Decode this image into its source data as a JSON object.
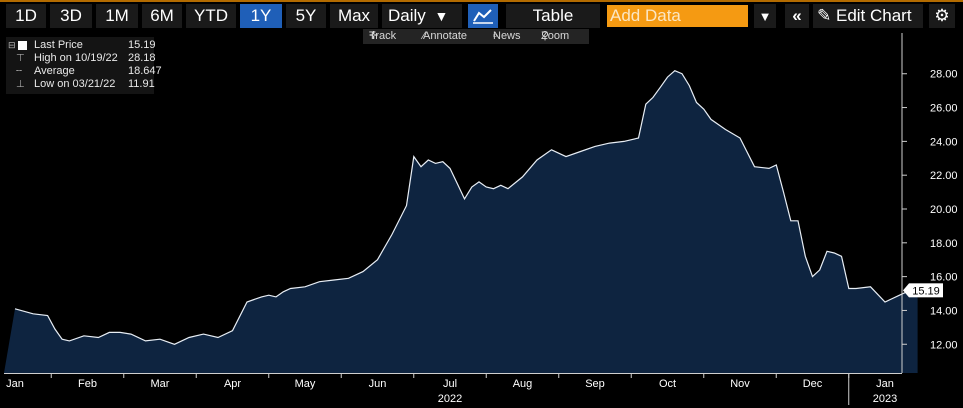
{
  "toolbar": {
    "ranges": [
      "1D",
      "3D",
      "1M",
      "6M",
      "YTD",
      "1Y",
      "5Y",
      "Max"
    ],
    "active_range": "1Y",
    "frequency": "Daily",
    "table_label": "Table",
    "add_data_placeholder": "Add Data",
    "edit_chart_label": "Edit Chart"
  },
  "subtoolbar": {
    "track": "Track",
    "annotate": "Annotate",
    "news": "News",
    "zoom": "Zoom"
  },
  "legend": {
    "last_price_label": "Last Price",
    "last_price_value": "15.19",
    "high_label": "High on 10/19/22",
    "high_value": "28.18",
    "average_label": "Average",
    "average_value": "18.647",
    "low_label": "Low on 03/21/22",
    "low_value": "11.91"
  },
  "colors": {
    "fill": "#0e2440",
    "line": "#e8eef5",
    "background": "#000000",
    "orange": "#f59a12",
    "active_blue": "#1f5fb8"
  },
  "chart_data": {
    "type": "area",
    "x_unit": "month index (0 = Jan 2022, 12 = Jan 2023)",
    "x": [
      0.0,
      0.25,
      0.45,
      0.55,
      0.65,
      0.75,
      0.95,
      1.15,
      1.3,
      1.45,
      1.6,
      1.8,
      2.0,
      2.2,
      2.4,
      2.6,
      2.8,
      3.0,
      3.2,
      3.4,
      3.5,
      3.6,
      3.7,
      3.8,
      4.0,
      4.2,
      4.4,
      4.6,
      4.8,
      5.0,
      5.2,
      5.4,
      5.5,
      5.6,
      5.7,
      5.8,
      5.9,
      6.0,
      6.1,
      6.2,
      6.3,
      6.4,
      6.5,
      6.6,
      6.7,
      6.8,
      7.0,
      7.2,
      7.4,
      7.6,
      7.8,
      8.0,
      8.2,
      8.4,
      8.6,
      8.7,
      8.8,
      8.9,
      9.0,
      9.1,
      9.2,
      9.3,
      9.4,
      9.5,
      9.6,
      9.8,
      10.0,
      10.2,
      10.4,
      10.5,
      10.6,
      10.7,
      10.8,
      10.9,
      11.0,
      11.1,
      11.2,
      11.3,
      11.4,
      11.5,
      11.6,
      11.8,
      12.0,
      12.2,
      12.35,
      12.45
    ],
    "y": [
      14.1,
      13.8,
      13.7,
      12.9,
      12.3,
      12.2,
      12.5,
      12.4,
      12.7,
      12.7,
      12.6,
      12.2,
      12.3,
      12.0,
      12.4,
      12.6,
      12.4,
      12.8,
      14.5,
      14.8,
      14.9,
      14.8,
      15.1,
      15.3,
      15.4,
      15.7,
      15.8,
      15.9,
      16.3,
      17.0,
      18.5,
      20.2,
      23.1,
      22.5,
      22.9,
      22.7,
      22.8,
      22.4,
      21.5,
      20.6,
      21.3,
      21.6,
      21.3,
      21.2,
      21.4,
      21.2,
      21.9,
      22.9,
      23.5,
      23.1,
      23.4,
      23.7,
      23.9,
      24.0,
      24.2,
      26.2,
      26.6,
      27.2,
      27.8,
      28.18,
      28.0,
      27.3,
      26.3,
      25.9,
      25.3,
      24.7,
      24.2,
      22.5,
      22.4,
      22.6,
      21.0,
      19.3,
      19.3,
      17.2,
      16.0,
      16.4,
      17.5,
      17.4,
      17.2,
      15.3,
      15.3,
      15.4,
      14.5,
      14.9,
      15.2,
      15.19
    ],
    "y_ticks": [
      "12.00",
      "14.00",
      "16.00",
      "18.00",
      "20.00",
      "22.00",
      "24.00",
      "26.00",
      "28.00"
    ],
    "y_tick_values": [
      12,
      14,
      16,
      18,
      20,
      22,
      24,
      26,
      28
    ],
    "ylim": [
      10.3,
      29.7
    ],
    "x_ticks": [
      "Jan",
      "Feb",
      "Mar",
      "Apr",
      "May",
      "Jun",
      "Jul",
      "Aug",
      "Sep",
      "Oct",
      "Nov",
      "Dec",
      "Jan"
    ],
    "x_tick_values": [
      0,
      1,
      2,
      3,
      4,
      5,
      6,
      7,
      8,
      9,
      10,
      11,
      12
    ],
    "year_labels": [
      "2022",
      "2023"
    ],
    "year_label_x": [
      6.0,
      12.0
    ],
    "last_value_label": "15.19",
    "grid": false
  }
}
